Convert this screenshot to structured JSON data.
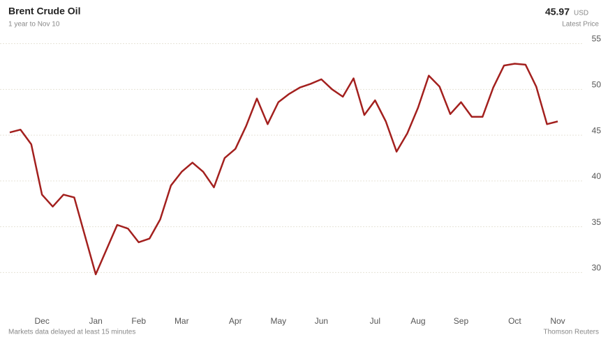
{
  "chart_data": {
    "type": "line",
    "title": "Brent Crude Oil",
    "subtitle": "1 year to Nov 10",
    "latest_price": 45.97,
    "currency": "USD",
    "latest_label": "Latest Price",
    "note": "Markets data delayed at least 15 minutes",
    "source": "Thomson Reuters",
    "categories": [
      null,
      null,
      null,
      "Dec",
      null,
      null,
      null,
      null,
      "Jan",
      null,
      null,
      null,
      "Feb",
      null,
      null,
      null,
      "Mar",
      null,
      null,
      null,
      null,
      "Apr",
      null,
      null,
      null,
      "May",
      null,
      null,
      null,
      "Jun",
      null,
      null,
      null,
      null,
      "Jul",
      null,
      null,
      null,
      "Aug",
      null,
      null,
      null,
      "Sep",
      null,
      null,
      null,
      null,
      "Oct",
      null,
      null,
      null,
      "Nov"
    ],
    "series": [
      {
        "name": "Brent Crude Oil",
        "color": "#a3201e",
        "values": [
          45.3,
          45.6,
          44,
          38.5,
          37.2,
          38.5,
          38.2,
          34,
          29.8,
          32.5,
          35.2,
          34.8,
          33.3,
          33.7,
          35.8,
          39.5,
          41,
          42,
          41,
          39.3,
          42.5,
          43.5,
          46,
          49,
          46.2,
          48.6,
          49.5,
          50.2,
          50.6,
          51.1,
          50,
          49.2,
          51.2,
          47.2,
          48.8,
          46.5,
          43.2,
          45.2,
          48,
          51.5,
          50.3,
          47.3,
          48.6,
          47,
          47,
          50.2,
          52.6,
          52.8,
          52.7,
          50.3,
          46.2,
          46.5
        ]
      }
    ],
    "ylim": [
      26,
      55.5
    ],
    "yticks": [
      30,
      35,
      40,
      45,
      50,
      55
    ],
    "grid": true
  }
}
